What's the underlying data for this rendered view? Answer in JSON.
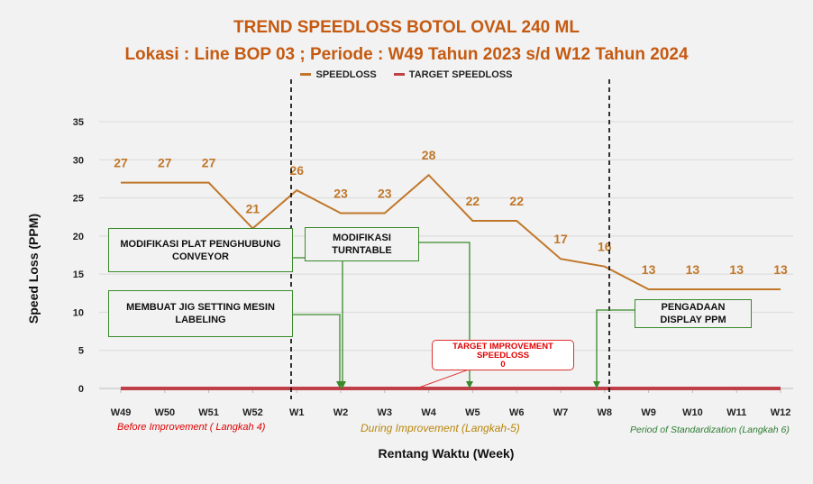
{
  "title": "TREND SPEEDLOSS BOTOL OVAL 240 ML",
  "subtitle": "Lokasi : Line BOP 03 ; Periode : W49 Tahun 2023 s/d W12 Tahun 2024",
  "legend": [
    {
      "label": "SPEEDLOSS",
      "color": "#c0772a"
    },
    {
      "label": "TARGET SPEEDLOSS",
      "color": "#c0404a"
    }
  ],
  "chart_data": {
    "type": "line",
    "categories": [
      "W49",
      "W50",
      "W51",
      "W52",
      "W1",
      "W2",
      "W3",
      "W4",
      "W5",
      "W6",
      "W7",
      "W8",
      "W9",
      "W10",
      "W11",
      "W12"
    ],
    "series": [
      {
        "name": "SPEEDLOSS",
        "values": [
          27,
          27,
          27,
          21,
          26,
          23,
          23,
          28,
          22,
          22,
          17,
          16,
          13,
          13,
          13,
          13
        ],
        "color": "#c0772a"
      },
      {
        "name": "TARGET SPEEDLOSS",
        "values": [
          0,
          0,
          0,
          0,
          0,
          0,
          0,
          0,
          0,
          0,
          0,
          0,
          0,
          0,
          0,
          0
        ],
        "color": "#c0404a"
      }
    ],
    "xlabel": "Rentang Waktu (Week)",
    "ylabel": "Speed Loss (PPM)",
    "ylim": [
      0,
      35
    ],
    "yticks": [
      0,
      5,
      10,
      15,
      20,
      25,
      30,
      35
    ],
    "grid": true,
    "legend_position": "top"
  },
  "annotations": {
    "box1": "MODIFIKASI PLAT PENGHUBUNG CONVEYOR",
    "box2": "MEMBUAT JIG SETTING MESIN LABELING",
    "box3": "MODIFIKASI TURNTABLE",
    "box4": "PENGADAAN DISPLAY PPM",
    "callout_line1": "TARGET IMPROVEMENT",
    "callout_line2": "SPEEDLOSS",
    "callout_line3": "0"
  },
  "phases": {
    "before": "Before Improvement ( Langkah 4)",
    "during": "During Improvement (Langkah-5)",
    "after": "Period of Standardization (Langkah 6)"
  },
  "colors": {
    "title": "#c55a11",
    "speedloss": "#c0772a",
    "target": "#c0404a",
    "box_border": "#3a8a2a",
    "before_text": "#e00000",
    "during_text": "#b8860b",
    "after_text": "#2e7d32"
  }
}
